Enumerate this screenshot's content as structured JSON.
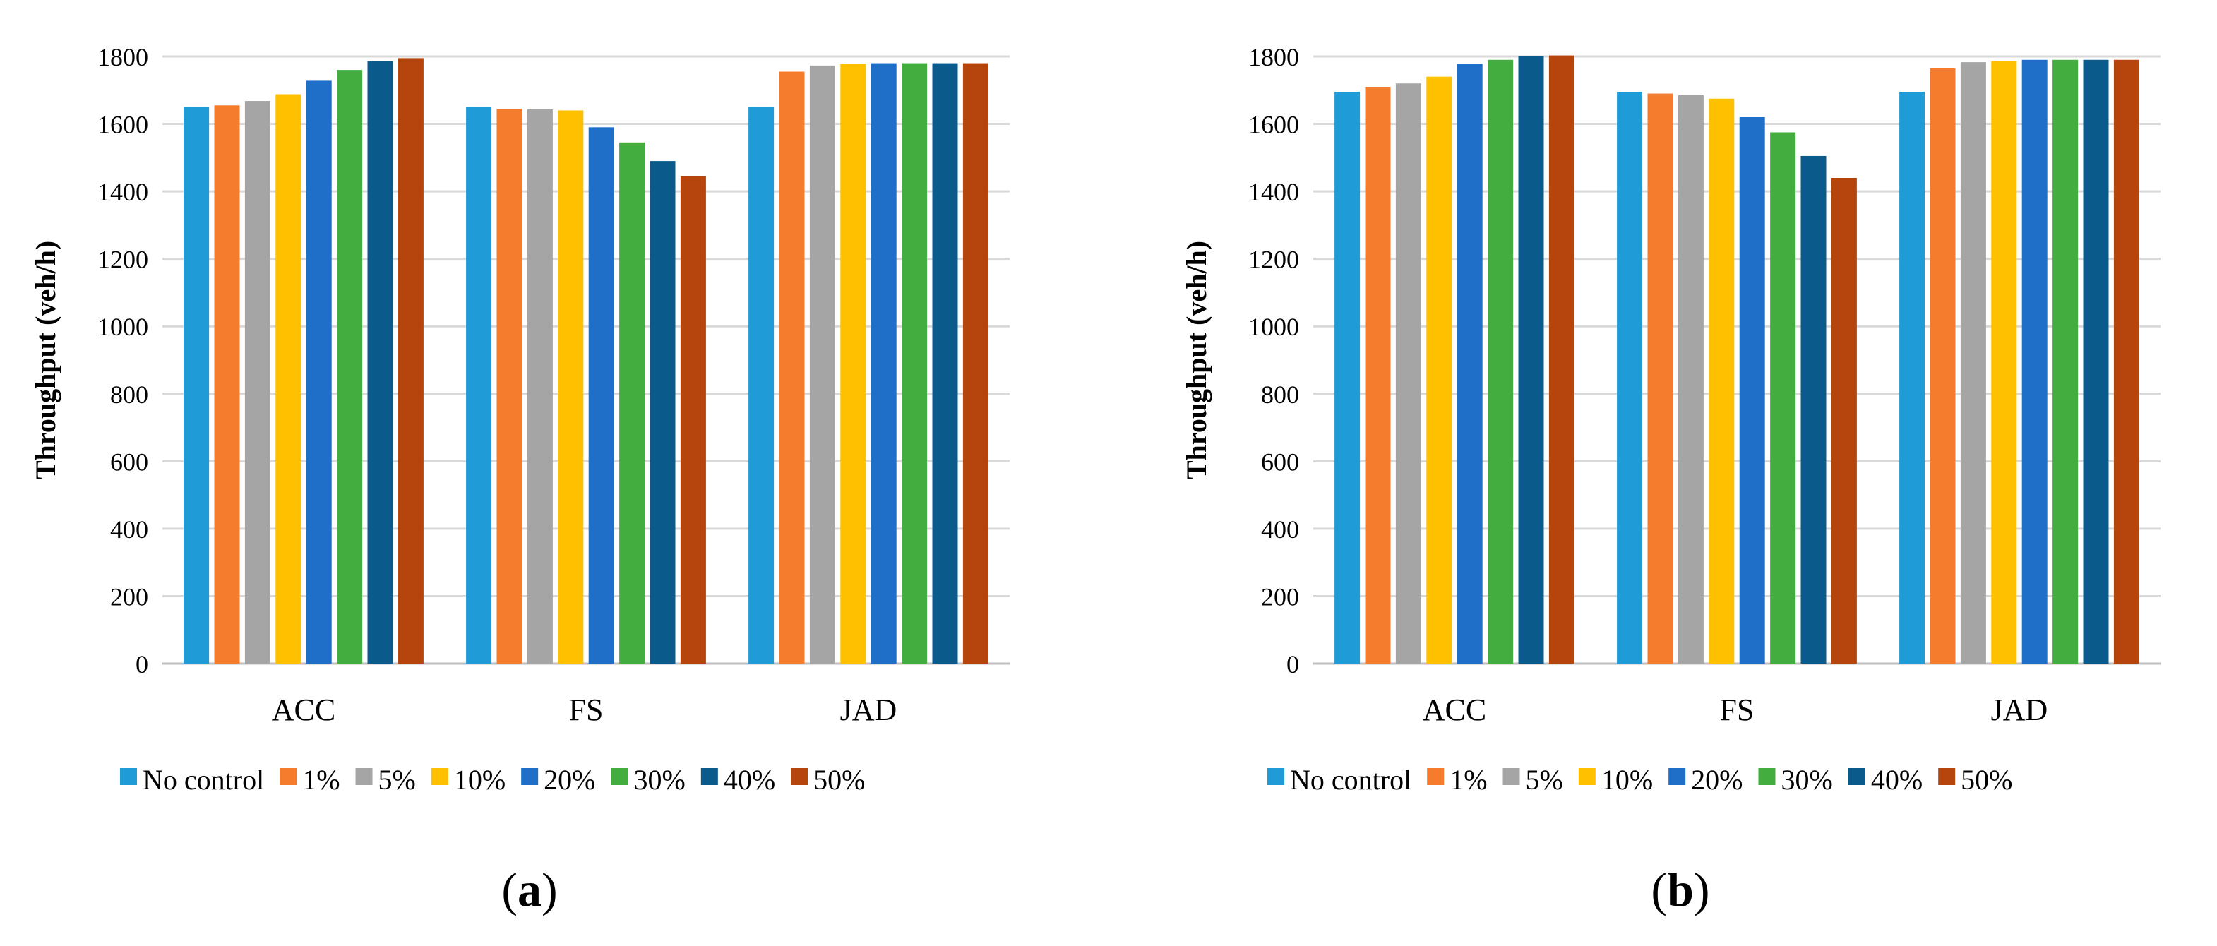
{
  "chart_data": [
    {
      "type": "bar",
      "panel": "a",
      "categories": [
        "ACC",
        "FS",
        "JAD"
      ],
      "ylabel": "Throughput (veh/h)",
      "xlabel": "",
      "ylim": [
        0,
        1800
      ],
      "yticks": [
        0,
        200,
        400,
        600,
        800,
        1000,
        1200,
        1400,
        1600,
        1800
      ],
      "grid": true,
      "legend_position": "bottom",
      "series": [
        {
          "name": "No control",
          "color": "#1f9bd7",
          "values": [
            1650,
            1650,
            1650
          ]
        },
        {
          "name": "1%",
          "color": "#f47c2c",
          "values": [
            1655,
            1645,
            1755
          ]
        },
        {
          "name": "5%",
          "color": "#a5a5a5",
          "values": [
            1668,
            1643,
            1773
          ]
        },
        {
          "name": "10%",
          "color": "#ffc000",
          "values": [
            1688,
            1640,
            1778
          ]
        },
        {
          "name": "20%",
          "color": "#1f6fc9",
          "values": [
            1728,
            1590,
            1780
          ]
        },
        {
          "name": "30%",
          "color": "#43ad3f",
          "values": [
            1760,
            1545,
            1780
          ]
        },
        {
          "name": "40%",
          "color": "#0a5a8c",
          "values": [
            1786,
            1490,
            1780
          ]
        },
        {
          "name": "50%",
          "color": "#b5440d",
          "values": [
            1795,
            1445,
            1780
          ]
        }
      ]
    },
    {
      "type": "bar",
      "panel": "b",
      "categories": [
        "ACC",
        "FS",
        "JAD"
      ],
      "ylabel": "Throughput (veh/h)",
      "xlabel": "",
      "ylim": [
        0,
        1800
      ],
      "yticks": [
        0,
        200,
        400,
        600,
        800,
        1000,
        1200,
        1400,
        1600,
        1800
      ],
      "grid": true,
      "legend_position": "bottom",
      "series": [
        {
          "name": "No control",
          "color": "#1f9bd7",
          "values": [
            1695,
            1695,
            1695
          ]
        },
        {
          "name": "1%",
          "color": "#f47c2c",
          "values": [
            1710,
            1690,
            1765
          ]
        },
        {
          "name": "5%",
          "color": "#a5a5a5",
          "values": [
            1720,
            1685,
            1783
          ]
        },
        {
          "name": "10%",
          "color": "#ffc000",
          "values": [
            1740,
            1675,
            1787
          ]
        },
        {
          "name": "20%",
          "color": "#1f6fc9",
          "values": [
            1778,
            1620,
            1790
          ]
        },
        {
          "name": "30%",
          "color": "#43ad3f",
          "values": [
            1790,
            1575,
            1790
          ]
        },
        {
          "name": "40%",
          "color": "#0a5a8c",
          "values": [
            1800,
            1505,
            1790
          ]
        },
        {
          "name": "50%",
          "color": "#b5440d",
          "values": [
            1803,
            1440,
            1790
          ]
        }
      ]
    }
  ],
  "panel_labels": [
    "(a)",
    "(b)"
  ],
  "colors": {
    "grid": "#d9d9d9",
    "axis": "#bfbfbf",
    "text": "#000000",
    "background": "#ffffff"
  }
}
